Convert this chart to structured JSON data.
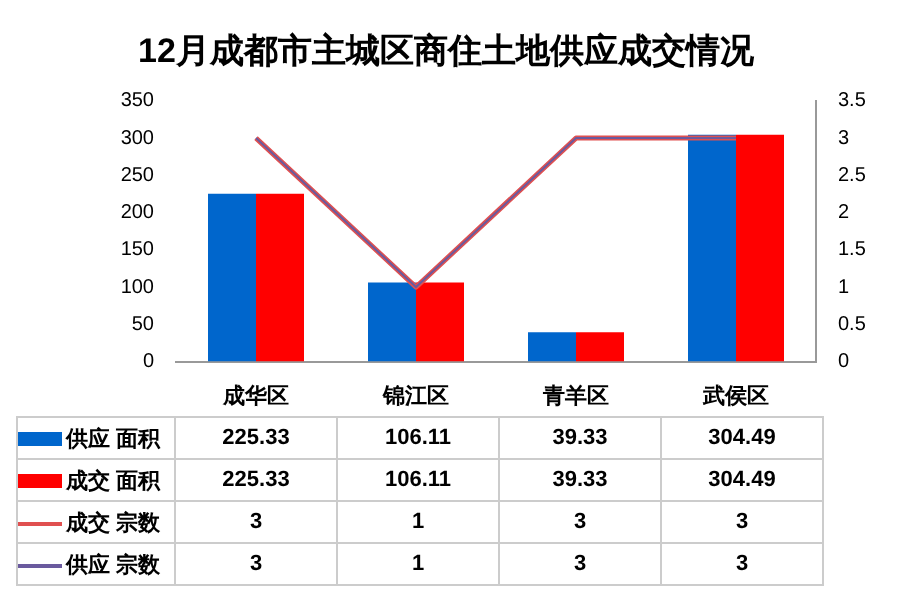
{
  "chart_data": {
    "type": "bar",
    "title": "12月成都市主城区商住土地供应成交情况",
    "categories": [
      "成华区",
      "锦江区",
      "青羊区",
      "武侯区"
    ],
    "series": [
      {
        "name": "供应 面积",
        "color": "#0066cc",
        "values": [
          225.33,
          106.11,
          39.33,
          304.49
        ]
      },
      {
        "name": "成交 面积",
        "color": "#ff0000",
        "values": [
          225.33,
          106.11,
          39.33,
          304.49
        ]
      },
      {
        "name": "成交 宗数",
        "type": "line",
        "axis": "y2",
        "color": "#e05050",
        "values": [
          3,
          1,
          3,
          3
        ]
      },
      {
        "name": "供应 宗数",
        "type": "line",
        "axis": "y2",
        "color": "#6a5a9e",
        "values": [
          3,
          1,
          3,
          3
        ]
      }
    ],
    "ylim": [
      0,
      350
    ],
    "yticks": [
      0,
      50,
      100,
      150,
      200,
      250,
      300,
      350
    ],
    "y2lim": [
      0,
      3.5
    ],
    "y2ticks": [
      0,
      0.5,
      1,
      1.5,
      2,
      2.5,
      3,
      3.5
    ],
    "grid": false,
    "legend": "bottom",
    "data_labels": true,
    "marker": "none"
  }
}
